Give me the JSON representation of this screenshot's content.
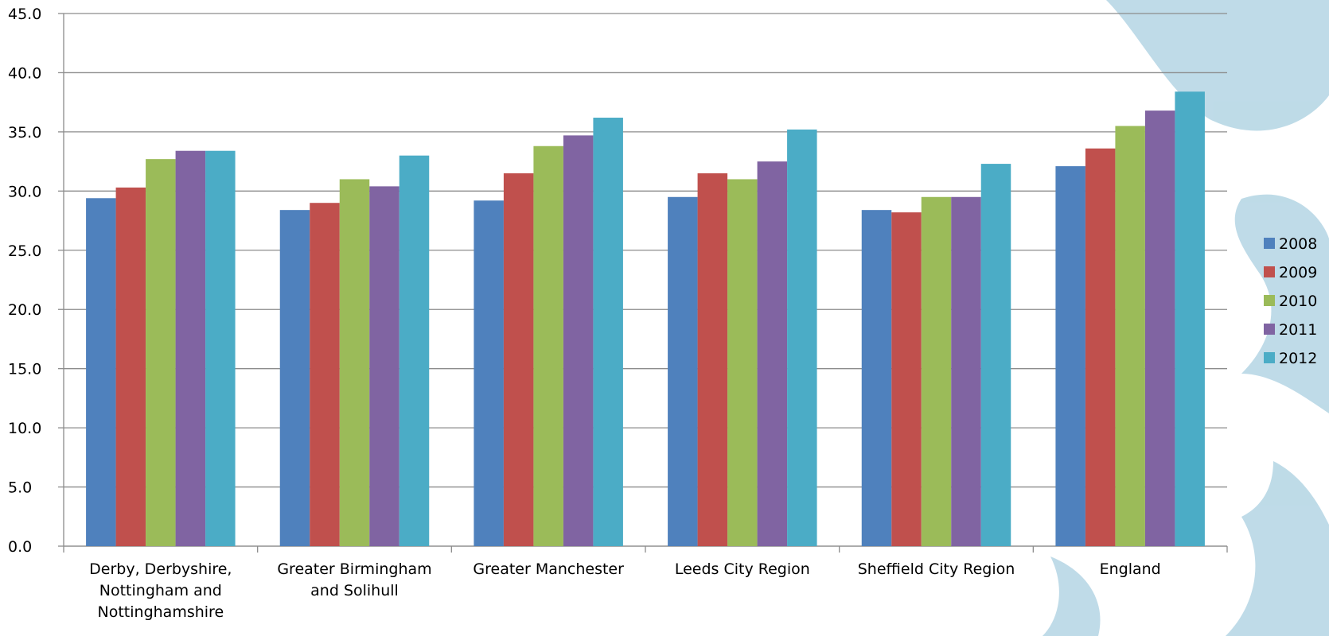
{
  "chart_data": {
    "type": "bar",
    "categories": [
      "Derby, Derbyshire, Nottingham and Nottinghamshire",
      "Greater Birmingham and Solihull",
      "Greater Manchester",
      "Leeds City Region",
      "Sheffield City Region",
      "England"
    ],
    "series": [
      {
        "name": "2008",
        "color": "#4f81bd",
        "values": [
          29.4,
          28.4,
          29.2,
          29.5,
          28.4,
          32.1
        ]
      },
      {
        "name": "2009",
        "color": "#c0504d",
        "values": [
          30.3,
          29.0,
          31.5,
          31.5,
          28.2,
          33.6
        ]
      },
      {
        "name": "2010",
        "color": "#9bbb59",
        "values": [
          32.7,
          31.0,
          33.8,
          31.0,
          29.5,
          35.5
        ]
      },
      {
        "name": "2011",
        "color": "#8064a2",
        "values": [
          33.4,
          30.4,
          34.7,
          32.5,
          29.5,
          36.8
        ]
      },
      {
        "name": "2012",
        "color": "#4bacc6",
        "values": [
          33.4,
          33.0,
          36.2,
          35.2,
          32.3,
          38.4
        ]
      }
    ],
    "ylim": [
      0,
      45
    ],
    "yticks": [
      {
        "value": 0,
        "label": "0.0"
      },
      {
        "value": 5,
        "label": "5.0"
      },
      {
        "value": 10,
        "label": "10.0"
      },
      {
        "value": 15,
        "label": "15.0"
      },
      {
        "value": 20,
        "label": "20.0"
      },
      {
        "value": 25,
        "label": "25.0"
      },
      {
        "value": 30,
        "label": "30.0"
      },
      {
        "value": 35,
        "label": "35.0"
      },
      {
        "value": 40,
        "label": "40.0"
      },
      {
        "value": 45,
        "label": "45.0"
      }
    ],
    "grid": true,
    "legend": "right"
  }
}
